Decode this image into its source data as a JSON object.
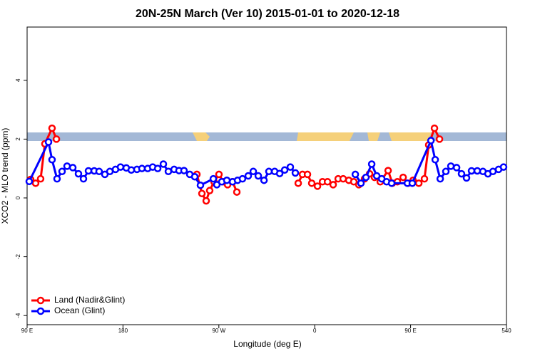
{
  "chart_data": {
    "type": "line",
    "title": "20N-25N March (Ver 10)   2015-01-01 to 2020-12-18",
    "x_label": "Longitude (deg E)",
    "y_label": "XCO2 - MLO trend (ppm)",
    "xlim": [
      90,
      540
    ],
    "xticks": [
      {
        "value": 90,
        "label": "90 E"
      },
      180,
      {
        "value": 270,
        "label": "90 W"
      },
      {
        "value": 360,
        "label": "0"
      },
      {
        "value": 450,
        "label": "90 E"
      },
      540
    ],
    "ylim": [
      -4.31,
      5.81
    ],
    "yticks": [
      -4,
      -2,
      0,
      2,
      4
    ],
    "legend": "bottom-left",
    "series": [
      {
        "name": "Land (Nadir&Glint)",
        "color": "#ff0000",
        "x": [
          93.3,
          98.0,
          102.7,
          106.7,
          113.4,
          117.5,
          null,
          249.4,
          254.1,
          258.1,
          261.4,
          265.5,
          270.1,
          274.2,
          278.2,
          282.9,
          286.9,
          null,
          344.5,
          348.5,
          353.2,
          357.2,
          362.6,
          367.3,
          372.0,
          377.3,
          382.0,
          386.7,
          392.0,
          396.7,
          401.4,
          406.8,
          411.5,
          416.1,
          421.5,
          428.9,
          432.9,
          437.6,
          443.0,
          447.6,
          452.3,
          457.7,
          463.0,
          467.0,
          472.4,
          477.1
        ],
        "values": [
          0.63,
          0.5,
          0.65,
          1.84,
          2.37,
          2.0,
          null,
          0.8,
          0.15,
          -0.1,
          0.25,
          0.55,
          0.8,
          0.55,
          0.45,
          0.55,
          0.2,
          null,
          0.5,
          0.8,
          0.8,
          0.5,
          0.4,
          0.55,
          0.55,
          0.45,
          0.65,
          0.65,
          0.6,
          0.55,
          0.45,
          0.65,
          0.82,
          0.7,
          0.55,
          0.93,
          0.5,
          0.55,
          0.7,
          0.5,
          0.6,
          0.5,
          0.65,
          1.8,
          2.37,
          2.0
        ]
      },
      {
        "name": "Ocean (Glint)",
        "color": "#0000ff",
        "x": [
          92.0,
          110.1,
          113.4,
          118.1,
          122.8,
          127.5,
          132.9,
          138.2,
          142.9,
          147.6,
          153.0,
          157.6,
          163.0,
          167.7,
          173.0,
          177.7,
          183.1,
          187.8,
          193.1,
          197.8,
          203.2,
          207.9,
          212.6,
          217.9,
          222.6,
          228.0,
          232.6,
          237.3,
          242.7,
          247.4,
          252.7,
          264.8,
          268.1,
          272.8,
          277.5,
          282.9,
          287.6,
          292.2,
          297.6,
          302.3,
          307.0,
          312.4,
          317.0,
          322.4,
          327.1,
          331.8,
          337.1,
          341.8,
          null,
          398.1,
          403.4,
          408.1,
          413.5,
          418.2,
          422.9,
          427.5,
          432.2,
          447.0,
          451.6,
          469.1,
          473.1,
          477.8,
          483.1,
          487.8,
          493.2,
          497.8,
          502.5,
          507.2,
          512.6,
          517.9,
          522.6,
          527.3,
          532.6,
          537.3
        ],
        "values": [
          0.56,
          1.9,
          1.3,
          0.65,
          0.9,
          1.08,
          1.03,
          0.82,
          0.65,
          0.92,
          0.92,
          0.9,
          0.8,
          0.9,
          0.97,
          1.05,
          1.02,
          0.95,
          0.97,
          1.0,
          1.0,
          1.05,
          1.0,
          1.15,
          0.9,
          0.97,
          0.93,
          0.93,
          0.8,
          0.72,
          0.43,
          0.65,
          0.45,
          0.55,
          0.6,
          0.55,
          0.6,
          0.65,
          0.75,
          0.9,
          0.75,
          0.6,
          0.9,
          0.9,
          0.83,
          0.95,
          1.05,
          0.85,
          null,
          0.8,
          0.5,
          0.7,
          1.15,
          0.75,
          0.65,
          0.55,
          0.5,
          0.5,
          0.5,
          1.95,
          1.3,
          0.65,
          0.9,
          1.08,
          1.03,
          0.82,
          0.68,
          0.92,
          0.92,
          0.9,
          0.82,
          0.9,
          0.97,
          1.05
        ]
      }
    ]
  }
}
